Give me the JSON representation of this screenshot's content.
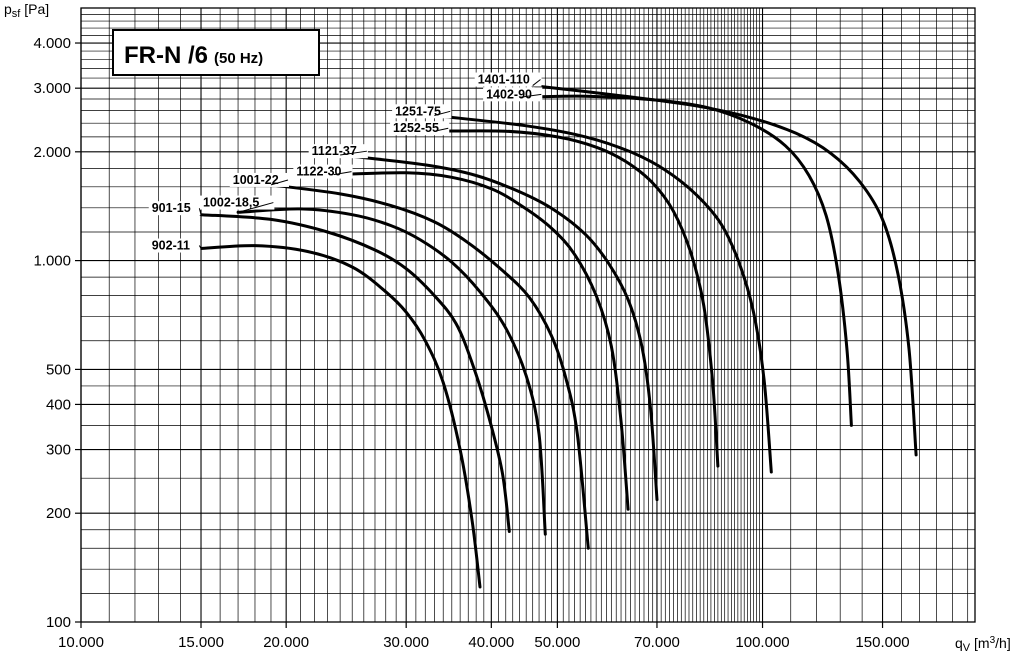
{
  "chart_data": {
    "type": "line",
    "title": "FR-N /6",
    "subtitle": "(50 Hz)",
    "xlabel": {
      "base": "q",
      "sub": "V",
      "unit_pre": " [m",
      "unit_sup": "3",
      "unit_post": "/h]"
    },
    "ylabel": {
      "base": "p",
      "sub": "sf",
      "unit": " [Pa]"
    },
    "xscale": "log",
    "yscale": "log",
    "xlim": [
      10000,
      205000
    ],
    "ylim": [
      100,
      5000
    ],
    "grid": true,
    "x_ticks": [
      {
        "value": 10000,
        "label": "10.000"
      },
      {
        "value": 15000,
        "label": "15.000"
      },
      {
        "value": 20000,
        "label": "20.000"
      },
      {
        "value": 30000,
        "label": "30.000"
      },
      {
        "value": 40000,
        "label": "40.000"
      },
      {
        "value": 50000,
        "label": "50.000"
      },
      {
        "value": 70000,
        "label": "70.000"
      },
      {
        "value": 100000,
        "label": "100.000"
      },
      {
        "value": 150000,
        "label": "150.000"
      }
    ],
    "y_ticks": [
      {
        "value": 100,
        "label": "100"
      },
      {
        "value": 200,
        "label": "200"
      },
      {
        "value": 300,
        "label": "300"
      },
      {
        "value": 400,
        "label": "400"
      },
      {
        "value": 500,
        "label": "500"
      },
      {
        "value": 1000,
        "label": "1.000"
      },
      {
        "value": 2000,
        "label": "2.000"
      },
      {
        "value": 3000,
        "label": "3.000"
      },
      {
        "value": 4000,
        "label": "4.000"
      }
    ],
    "series": [
      {
        "name": "902-11",
        "x": [
          15000,
          18000,
          21500,
          25000,
          28000,
          30000,
          32000,
          34000,
          36000,
          37500,
          38500
        ],
        "y": [
          1080,
          1100,
          1060,
          960,
          820,
          720,
          600,
          460,
          300,
          190,
          125
        ]
      },
      {
        "name": "901-15",
        "x": [
          15000,
          19000,
          23000,
          27000,
          30000,
          33000,
          35500,
          37500,
          39500,
          41500,
          42500
        ],
        "y": [
          1340,
          1300,
          1200,
          1070,
          950,
          800,
          670,
          520,
          380,
          260,
          178
        ]
      },
      {
        "name": "1002-18,5",
        "x": [
          17000,
          21000,
          25000,
          28500,
          31500,
          35000,
          38500,
          42000,
          45000,
          47000,
          48000
        ],
        "y": [
          1360,
          1390,
          1340,
          1250,
          1140,
          990,
          820,
          650,
          480,
          330,
          175
        ]
      },
      {
        "name": "1001-22",
        "x": [
          19000,
          24000,
          28500,
          33000,
          37000,
          41500,
          45500,
          49000,
          51500,
          53500,
          55500
        ],
        "y": [
          1620,
          1530,
          1420,
          1280,
          1120,
          940,
          790,
          620,
          470,
          330,
          160
        ]
      },
      {
        "name": "1122-30",
        "x": [
          23500,
          30000,
          35000,
          40000,
          44500,
          49000,
          53000,
          57000,
          60000,
          62000,
          63500
        ],
        "y": [
          1730,
          1750,
          1700,
          1580,
          1410,
          1230,
          1040,
          800,
          580,
          360,
          205
        ]
      },
      {
        "name": "1121-37",
        "x": [
          24000,
          32000,
          38000,
          44000,
          49500,
          55000,
          59500,
          63500,
          66500,
          68500,
          70000
        ],
        "y": [
          1960,
          1840,
          1720,
          1550,
          1380,
          1180,
          980,
          780,
          580,
          390,
          218
        ]
      },
      {
        "name": "1252-55",
        "x": [
          33000,
          42000,
          50000,
          57000,
          63000,
          69000,
          74000,
          78500,
          82000,
          84500,
          86000
        ],
        "y": [
          2280,
          2280,
          2200,
          2060,
          1880,
          1640,
          1370,
          1050,
          750,
          460,
          270
        ]
      },
      {
        "name": "1251-75",
        "x": [
          33000,
          45000,
          55000,
          64000,
          72000,
          80000,
          87000,
          92500,
          97000,
          100500,
          103000
        ],
        "y": [
          2520,
          2360,
          2200,
          2000,
          1780,
          1520,
          1260,
          980,
          720,
          470,
          260
        ]
      },
      {
        "name": "1402-90",
        "x": [
          44000,
          55000,
          70000,
          83000,
          96000,
          108000,
          117000,
          124000,
          129000,
          133000,
          135000
        ],
        "y": [
          2830,
          2850,
          2780,
          2650,
          2400,
          2080,
          1720,
          1330,
          930,
          570,
          350
        ]
      },
      {
        "name": "1401-110",
        "x": [
          46000,
          60000,
          78000,
          95000,
          112000,
          126000,
          139000,
          150000,
          158000,
          164000,
          168000
        ],
        "y": [
          3050,
          2880,
          2700,
          2500,
          2250,
          1980,
          1650,
          1300,
          920,
          570,
          290
        ]
      }
    ],
    "curve_labels": [
      {
        "series": "902-11",
        "text": "902-11",
        "x": 12700,
        "y": 1080,
        "lead_x": 15000
      },
      {
        "series": "901-15",
        "text": "901-15",
        "x": 12700,
        "y": 1370,
        "lead_x": 15000
      },
      {
        "series": "1002-18,5",
        "text": "1002-18,5",
        "x": 15100,
        "y": 1420,
        "lead_x": 17000
      },
      {
        "series": "1001-22",
        "text": "1001-22",
        "x": 16700,
        "y": 1640,
        "lead_x": 19000
      },
      {
        "series": "1122-30",
        "text": "1122-30",
        "x": 20700,
        "y": 1730,
        "lead_x": 23500
      },
      {
        "series": "1121-37",
        "text": "1121-37",
        "x": 21800,
        "y": 1970,
        "lead_x": 24000
      },
      {
        "series": "1252-55",
        "text": "1252-55",
        "x": 28700,
        "y": 2280,
        "lead_x": 33000
      },
      {
        "series": "1251-75",
        "text": "1251-75",
        "x": 28900,
        "y": 2540,
        "lead_x": 33000
      },
      {
        "series": "1402-90",
        "text": "1402-90",
        "x": 39300,
        "y": 2830,
        "lead_x": 44000
      },
      {
        "series": "1401-110",
        "text": "1401-110",
        "x": 38200,
        "y": 3110,
        "lead_x": 46000
      }
    ]
  }
}
